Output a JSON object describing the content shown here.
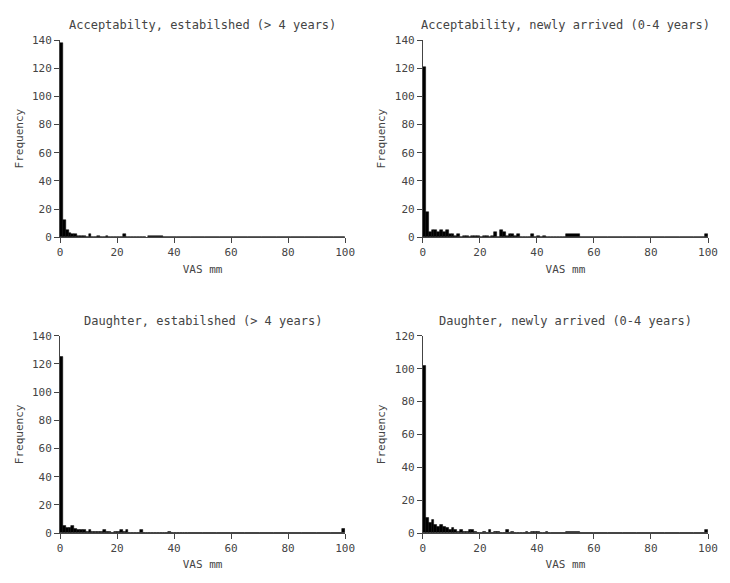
{
  "chart_data": [
    {
      "type": "bar",
      "title": "Acceptabilty, estabilshed (> 4 years)",
      "xlabel": "VAS mm",
      "ylabel": "Frequency",
      "x": [
        0,
        1,
        2,
        3,
        4,
        5,
        6,
        7,
        8,
        9,
        10,
        11,
        12,
        13,
        14,
        15,
        16,
        17,
        18,
        19,
        20,
        21,
        22,
        23,
        24,
        25,
        26,
        27,
        28,
        29,
        31,
        36,
        41,
        46,
        51,
        56,
        61,
        66,
        71,
        76,
        81,
        86,
        91,
        96
      ],
      "widths": [
        1,
        1,
        1,
        1,
        1,
        1,
        1,
        1,
        1,
        1,
        1,
        1,
        1,
        1,
        1,
        1,
        1,
        1,
        1,
        1,
        1,
        1,
        1,
        1,
        1,
        1,
        1,
        1,
        1,
        1,
        5,
        5,
        5,
        5,
        5,
        5,
        5,
        5,
        5,
        5,
        5,
        5,
        5,
        4
      ],
      "values": [
        138,
        12,
        5,
        3,
        2,
        2,
        1,
        1,
        1,
        0,
        2,
        0,
        0,
        1,
        0,
        0,
        1,
        0,
        0,
        0,
        0,
        0,
        2,
        0,
        0,
        0,
        0,
        0,
        0,
        0,
        1,
        0,
        0,
        0,
        0,
        0,
        0,
        0,
        0,
        0,
        0,
        0,
        0,
        0
      ],
      "color": "#000000",
      "xlim": [
        0,
        100
      ],
      "xticks": [
        0,
        20,
        40,
        60,
        80,
        100
      ],
      "ylim": [
        0,
        140
      ],
      "yticks": [
        0,
        20,
        40,
        60,
        80,
        100,
        120,
        140
      ],
      "grid": false
    },
    {
      "type": "bar",
      "title": "Acceptability, newly arrived (0-4 years)",
      "xlabel": "VAS mm",
      "ylabel": "Frequency",
      "x": [
        0,
        1,
        2,
        3,
        4,
        5,
        6,
        7,
        8,
        9,
        10,
        11,
        12,
        13,
        14,
        15,
        16,
        17,
        18,
        19,
        20,
        21,
        22,
        23,
        24,
        25,
        26,
        27,
        28,
        29,
        30,
        31,
        32,
        33,
        34,
        35,
        36,
        37,
        38,
        39,
        40,
        41,
        42,
        43,
        44,
        45,
        46,
        47,
        48,
        49,
        50,
        55,
        60,
        65,
        70,
        75,
        80,
        85,
        90,
        95,
        99
      ],
      "widths": [
        1,
        1,
        1,
        1,
        1,
        1,
        1,
        1,
        1,
        1,
        1,
        1,
        1,
        1,
        1,
        1,
        1,
        1,
        1,
        1,
        1,
        1,
        1,
        1,
        1,
        1,
        1,
        1,
        1,
        1,
        1,
        1,
        1,
        1,
        1,
        1,
        1,
        1,
        1,
        1,
        1,
        1,
        1,
        1,
        1,
        1,
        1,
        1,
        1,
        1,
        5,
        5,
        5,
        5,
        5,
        5,
        5,
        5,
        5,
        4,
        1
      ],
      "values": [
        121,
        18,
        4,
        5,
        5,
        4,
        5,
        4,
        5,
        2,
        2,
        1,
        2,
        0,
        1,
        1,
        0,
        1,
        1,
        1,
        0,
        1,
        1,
        0,
        1,
        4,
        0,
        5,
        4,
        1,
        2,
        2,
        1,
        2,
        0,
        0,
        0,
        0,
        2,
        0,
        1,
        0,
        1,
        0,
        0,
        0,
        0,
        0,
        0,
        0,
        2,
        0,
        0,
        0,
        0,
        0,
        0,
        0,
        0,
        0,
        2
      ],
      "color": "#000000",
      "xlim": [
        0,
        100
      ],
      "xticks": [
        0,
        20,
        40,
        60,
        80,
        100
      ],
      "ylim": [
        0,
        140
      ],
      "yticks": [
        0,
        20,
        40,
        60,
        80,
        100,
        120,
        140
      ],
      "grid": false
    },
    {
      "type": "bar",
      "title": "Daughter, estabilshed (> 4 years)",
      "xlabel": "VAS mm",
      "ylabel": "Frequency",
      "x": [
        0,
        1,
        2,
        3,
        4,
        5,
        6,
        7,
        8,
        9,
        10,
        11,
        12,
        13,
        14,
        15,
        16,
        17,
        18,
        19,
        20,
        21,
        22,
        23,
        24,
        25,
        26,
        27,
        28,
        29,
        30,
        31,
        32,
        33,
        34,
        35,
        36,
        37,
        38,
        39,
        40,
        41,
        42,
        43,
        44,
        45,
        50,
        55,
        60,
        65,
        70,
        75,
        80,
        85,
        90,
        95,
        99
      ],
      "widths": [
        1,
        1,
        1,
        1,
        1,
        1,
        1,
        1,
        1,
        1,
        1,
        1,
        1,
        1,
        1,
        1,
        1,
        1,
        1,
        1,
        1,
        1,
        1,
        1,
        1,
        1,
        1,
        1,
        1,
        1,
        1,
        1,
        1,
        1,
        1,
        1,
        1,
        1,
        1,
        1,
        1,
        1,
        1,
        1,
        1,
        5,
        5,
        5,
        5,
        5,
        5,
        5,
        5,
        5,
        5,
        4,
        1
      ],
      "values": [
        125,
        5,
        4,
        4,
        5,
        3,
        2,
        2,
        2,
        1,
        2,
        1,
        1,
        1,
        1,
        2,
        1,
        1,
        0,
        1,
        1,
        2,
        1,
        2,
        0,
        0,
        0,
        0,
        2,
        0,
        0,
        0,
        0,
        0,
        0,
        0,
        0,
        0,
        1,
        0,
        0,
        0,
        0,
        0,
        0,
        0,
        0,
        0,
        0,
        0,
        0,
        0,
        0,
        0,
        0,
        0,
        3
      ],
      "color": "#000000",
      "xlim": [
        0,
        100
      ],
      "xticks": [
        0,
        20,
        40,
        60,
        80,
        100
      ],
      "ylim": [
        0,
        140
      ],
      "yticks": [
        0,
        20,
        40,
        60,
        80,
        100,
        120,
        140
      ],
      "grid": false
    },
    {
      "type": "bar",
      "title": "Daughter, newly arrived (0-4 years)",
      "xlabel": "VAS mm",
      "ylabel": "Frequency",
      "x": [
        0,
        1,
        2,
        3,
        4,
        5,
        6,
        7,
        8,
        9,
        10,
        11,
        12,
        13,
        14,
        15,
        16,
        17,
        18,
        19,
        20,
        21,
        22,
        23,
        24,
        25,
        26,
        27,
        28,
        29,
        30,
        31,
        32,
        33,
        34,
        35,
        36,
        37,
        38,
        39,
        40,
        41,
        42,
        43,
        44,
        45,
        50,
        55,
        60,
        65,
        70,
        75,
        80,
        85,
        90,
        95,
        99
      ],
      "widths": [
        1,
        1,
        1,
        1,
        1,
        1,
        1,
        1,
        1,
        1,
        1,
        1,
        1,
        1,
        1,
        1,
        1,
        1,
        1,
        1,
        1,
        1,
        1,
        1,
        1,
        1,
        1,
        1,
        1,
        1,
        1,
        1,
        1,
        1,
        1,
        1,
        1,
        1,
        1,
        1,
        1,
        1,
        1,
        1,
        1,
        5,
        5,
        5,
        5,
        5,
        5,
        5,
        5,
        5,
        5,
        4,
        1
      ],
      "values": [
        102,
        9,
        6,
        8,
        5,
        4,
        5,
        4,
        3,
        2,
        3,
        2,
        1,
        2,
        1,
        1,
        2,
        2,
        1,
        0,
        0,
        1,
        0,
        2,
        0,
        1,
        1,
        0,
        0,
        2,
        0,
        1,
        0,
        0,
        0,
        0,
        1,
        0,
        1,
        1,
        1,
        0,
        0,
        1,
        0,
        0,
        1,
        0,
        0,
        0,
        0,
        0,
        0,
        0,
        0,
        0,
        2
      ],
      "color": "#000000",
      "xlim": [
        0,
        100
      ],
      "xticks": [
        0,
        20,
        40,
        60,
        80,
        100
      ],
      "ylim": [
        0,
        120
      ],
      "yticks": [
        0,
        20,
        40,
        60,
        80,
        100,
        120
      ],
      "grid": false
    }
  ]
}
